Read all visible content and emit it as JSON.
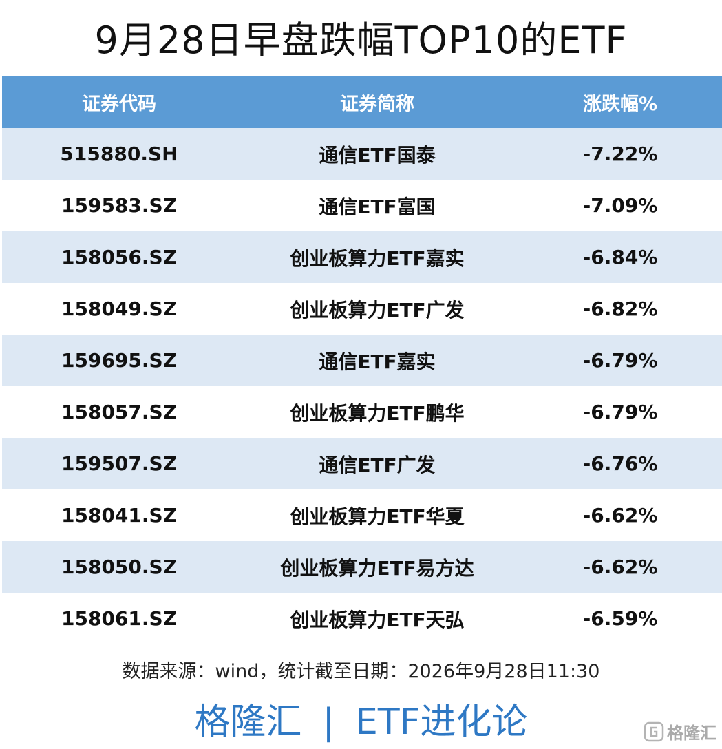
{
  "title": "9月28日早盘跌幅TOP10的ETF",
  "table": {
    "headers": [
      "证券代码",
      "证券简称",
      "涨跌幅%"
    ],
    "rows": [
      {
        "code": "515880.SH",
        "name": "通信ETF国泰",
        "change": "-7.22%"
      },
      {
        "code": "159583.SZ",
        "name": "通信ETF富国",
        "change": "-7.09%"
      },
      {
        "code": "158056.SZ",
        "name": "创业板算力ETF嘉实",
        "change": "-6.84%"
      },
      {
        "code": "158049.SZ",
        "name": "创业板算力ETF广发",
        "change": "-6.82%"
      },
      {
        "code": "159695.SZ",
        "name": "通信ETF嘉实",
        "change": "-6.79%"
      },
      {
        "code": "158057.SZ",
        "name": "创业板算力ETF鹏华",
        "change": "-6.79%"
      },
      {
        "code": "159507.SZ",
        "name": "通信ETF广发",
        "change": "-6.76%"
      },
      {
        "code": "158041.SZ",
        "name": "创业板算力ETF华夏",
        "change": "-6.62%"
      },
      {
        "code": "158050.SZ",
        "name": "创业板算力ETF易方达",
        "change": "-6.62%"
      },
      {
        "code": "158061.SZ",
        "name": "创业板算力ETF天弘",
        "change": "-6.59%"
      }
    ]
  },
  "source": "数据来源：wind，统计截至日期：2026年9月28日11:30",
  "footer": {
    "left": "格隆汇",
    "separator": "|",
    "right": "ETF进化论"
  },
  "watermark": {
    "logo_icon": "gelonghui-logo-icon",
    "text": "格隆汇"
  },
  "colors": {
    "header_bg": "#5b9bd5",
    "stripe_bg": "#dde8f4",
    "footer_text": "#2e78c4"
  }
}
